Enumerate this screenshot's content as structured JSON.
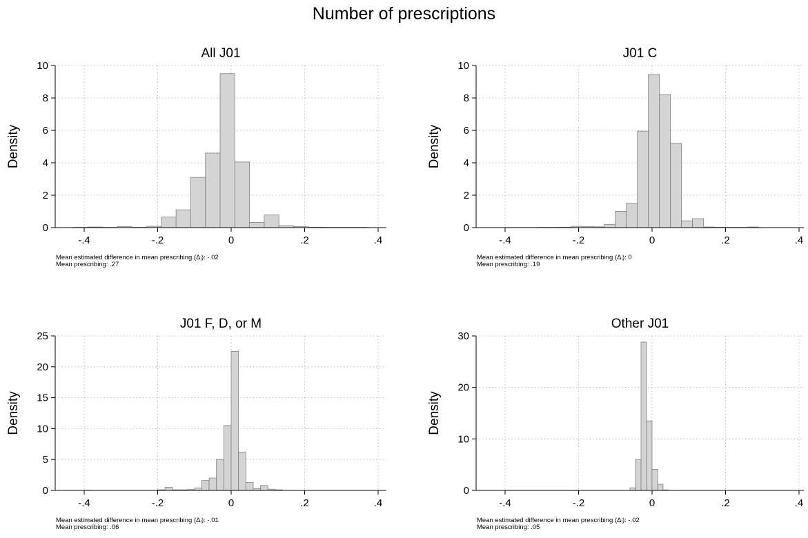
{
  "figure": {
    "title": "Number of prescriptions"
  },
  "chart_data": [
    {
      "type": "bar",
      "title": "All J01",
      "xlabel": "",
      "ylabel": "Density",
      "xlim": [
        -0.43,
        0.4
      ],
      "ylim": [
        0,
        10
      ],
      "x_ticks": [
        -0.4,
        -0.2,
        0,
        0.2,
        0.4
      ],
      "x_tick_labels": [
        "-.4",
        "-.2",
        "0",
        ".2",
        ".4"
      ],
      "y_ticks": [
        0,
        2,
        4,
        6,
        8,
        10
      ],
      "y_tick_labels": [
        "0",
        "2",
        "4",
        "6",
        "8",
        "10"
      ],
      "grid": true,
      "bins": [
        {
          "x0": -0.43,
          "x1": -0.39,
          "y": 0.02
        },
        {
          "x0": -0.39,
          "x1": -0.35,
          "y": 0.04
        },
        {
          "x0": -0.35,
          "x1": -0.31,
          "y": 0.02
        },
        {
          "x0": -0.31,
          "x1": -0.27,
          "y": 0.06
        },
        {
          "x0": -0.27,
          "x1": -0.23,
          "y": 0.02
        },
        {
          "x0": -0.23,
          "x1": -0.19,
          "y": 0.08
        },
        {
          "x0": -0.19,
          "x1": -0.15,
          "y": 0.65
        },
        {
          "x0": -0.15,
          "x1": -0.11,
          "y": 1.1
        },
        {
          "x0": -0.11,
          "x1": -0.07,
          "y": 3.1
        },
        {
          "x0": -0.07,
          "x1": -0.03,
          "y": 4.6
        },
        {
          "x0": -0.03,
          "x1": 0.01,
          "y": 9.5
        },
        {
          "x0": 0.01,
          "x1": 0.05,
          "y": 4.05
        },
        {
          "x0": 0.05,
          "x1": 0.09,
          "y": 0.32
        },
        {
          "x0": 0.09,
          "x1": 0.13,
          "y": 0.78
        },
        {
          "x0": 0.13,
          "x1": 0.17,
          "y": 0.12
        },
        {
          "x0": 0.17,
          "x1": 0.21,
          "y": 0.06
        },
        {
          "x0": 0.21,
          "x1": 0.25,
          "y": 0.03
        },
        {
          "x0": 0.25,
          "x1": 0.29,
          "y": 0.02
        },
        {
          "x0": 0.29,
          "x1": 0.33,
          "y": 0.02
        },
        {
          "x0": 0.33,
          "x1": 0.37,
          "y": 0.02
        }
      ],
      "notes": [
        "Mean estimated difference in mean prescribing (Δᵢ): -.02",
        "Mean prescribing: .27"
      ]
    },
    {
      "type": "bar",
      "title": "J01 C",
      "xlabel": "",
      "ylabel": "Density",
      "xlim": [
        -0.4,
        0.4
      ],
      "ylim": [
        0,
        10
      ],
      "x_ticks": [
        -0.4,
        -0.2,
        0,
        0.2,
        0.4
      ],
      "x_tick_labels": [
        "-.4",
        "-.2",
        "0",
        ".2",
        ".4"
      ],
      "y_ticks": [
        0,
        2,
        4,
        6,
        8,
        10
      ],
      "y_tick_labels": [
        "0",
        "2",
        "4",
        "6",
        "8",
        "10"
      ],
      "grid": true,
      "bins": [
        {
          "x0": -0.4,
          "x1": -0.37,
          "y": 0.01
        },
        {
          "x0": -0.37,
          "x1": -0.34,
          "y": 0.01
        },
        {
          "x0": -0.34,
          "x1": -0.31,
          "y": 0.01
        },
        {
          "x0": -0.31,
          "x1": -0.28,
          "y": 0.02
        },
        {
          "x0": -0.28,
          "x1": -0.25,
          "y": 0.02
        },
        {
          "x0": -0.25,
          "x1": -0.22,
          "y": 0.03
        },
        {
          "x0": -0.22,
          "x1": -0.19,
          "y": 0.08
        },
        {
          "x0": -0.19,
          "x1": -0.16,
          "y": 0.06
        },
        {
          "x0": -0.16,
          "x1": -0.13,
          "y": 0.05
        },
        {
          "x0": -0.13,
          "x1": -0.1,
          "y": 0.2
        },
        {
          "x0": -0.1,
          "x1": -0.07,
          "y": 1.0
        },
        {
          "x0": -0.07,
          "x1": -0.04,
          "y": 1.5
        },
        {
          "x0": -0.04,
          "x1": -0.01,
          "y": 5.95
        },
        {
          "x0": -0.01,
          "x1": 0.02,
          "y": 9.45
        },
        {
          "x0": 0.02,
          "x1": 0.05,
          "y": 8.2
        },
        {
          "x0": 0.05,
          "x1": 0.08,
          "y": 5.2
        },
        {
          "x0": 0.08,
          "x1": 0.11,
          "y": 0.42
        },
        {
          "x0": 0.11,
          "x1": 0.14,
          "y": 0.55
        },
        {
          "x0": 0.14,
          "x1": 0.17,
          "y": 0.04
        },
        {
          "x0": 0.17,
          "x1": 0.2,
          "y": 0.03
        },
        {
          "x0": 0.2,
          "x1": 0.23,
          "y": 0.02
        },
        {
          "x0": 0.23,
          "x1": 0.26,
          "y": 0.02
        },
        {
          "x0": 0.26,
          "x1": 0.29,
          "y": 0.04
        }
      ],
      "notes": [
        "Mean estimated difference in mean prescribing (Δᵢ): 0",
        "Mean prescribing: .19"
      ]
    },
    {
      "type": "bar",
      "title": "J01 F, D, or M",
      "xlabel": "",
      "ylabel": "Density",
      "xlim": [
        -0.4,
        0.4
      ],
      "ylim": [
        0,
        25
      ],
      "x_ticks": [
        -0.4,
        -0.2,
        0,
        0.2,
        0.4
      ],
      "x_tick_labels": [
        "-.4",
        "-.2",
        "0",
        ".2",
        ".4"
      ],
      "y_ticks": [
        0,
        5,
        10,
        15,
        20,
        25
      ],
      "y_tick_labels": [
        "0",
        "5",
        "10",
        "15",
        "20",
        "25"
      ],
      "grid": true,
      "bins": [
        {
          "x0": -0.4,
          "x1": -0.38,
          "y": 0.02
        },
        {
          "x0": -0.2,
          "x1": -0.18,
          "y": 0.1
        },
        {
          "x0": -0.18,
          "x1": -0.16,
          "y": 0.5
        },
        {
          "x0": -0.16,
          "x1": -0.14,
          "y": 0.1
        },
        {
          "x0": -0.14,
          "x1": -0.12,
          "y": 0.1
        },
        {
          "x0": -0.12,
          "x1": -0.1,
          "y": 0.15
        },
        {
          "x0": -0.1,
          "x1": -0.08,
          "y": 0.4
        },
        {
          "x0": -0.08,
          "x1": -0.06,
          "y": 1.6
        },
        {
          "x0": -0.06,
          "x1": -0.04,
          "y": 2.0
        },
        {
          "x0": -0.04,
          "x1": -0.02,
          "y": 5.0
        },
        {
          "x0": -0.02,
          "x1": 0.0,
          "y": 10.5
        },
        {
          "x0": 0.0,
          "x1": 0.02,
          "y": 22.5
        },
        {
          "x0": 0.02,
          "x1": 0.04,
          "y": 6.2
        },
        {
          "x0": 0.04,
          "x1": 0.06,
          "y": 1.3
        },
        {
          "x0": 0.06,
          "x1": 0.08,
          "y": 0.3
        },
        {
          "x0": 0.08,
          "x1": 0.1,
          "y": 0.8
        },
        {
          "x0": 0.1,
          "x1": 0.12,
          "y": 0.2
        },
        {
          "x0": 0.12,
          "x1": 0.14,
          "y": 0.1
        }
      ],
      "notes": [
        "Mean estimated difference in mean prescribing (Δᵢ): -.01",
        "Mean prescribing: .06"
      ]
    },
    {
      "type": "bar",
      "title": "Other J01",
      "xlabel": "",
      "ylabel": "Density",
      "xlim": [
        -0.4,
        0.4
      ],
      "ylim": [
        0,
        30
      ],
      "x_ticks": [
        -0.4,
        -0.2,
        0,
        0.2,
        0.4
      ],
      "x_tick_labels": [
        "-.4",
        "-.2",
        "0",
        ".2",
        ".4"
      ],
      "y_ticks": [
        0,
        10,
        20,
        30
      ],
      "y_tick_labels": [
        "0",
        "10",
        "20",
        "30"
      ],
      "grid": true,
      "bins": [
        {
          "x0": -0.4,
          "x1": -0.2,
          "y": 0.03
        },
        {
          "x0": -0.06,
          "x1": -0.045,
          "y": 0.5
        },
        {
          "x0": -0.045,
          "x1": -0.03,
          "y": 6.0
        },
        {
          "x0": -0.03,
          "x1": -0.015,
          "y": 28.8
        },
        {
          "x0": -0.015,
          "x1": 0.0,
          "y": 13.5
        },
        {
          "x0": 0.0,
          "x1": 0.015,
          "y": 4.1
        },
        {
          "x0": 0.015,
          "x1": 0.03,
          "y": 1.2
        },
        {
          "x0": 0.03,
          "x1": 0.045,
          "y": 0.1
        }
      ],
      "notes": [
        "Mean estimated difference in mean prescribing (Δᵢ): -.02",
        "Mean prescribing: .05"
      ]
    }
  ]
}
